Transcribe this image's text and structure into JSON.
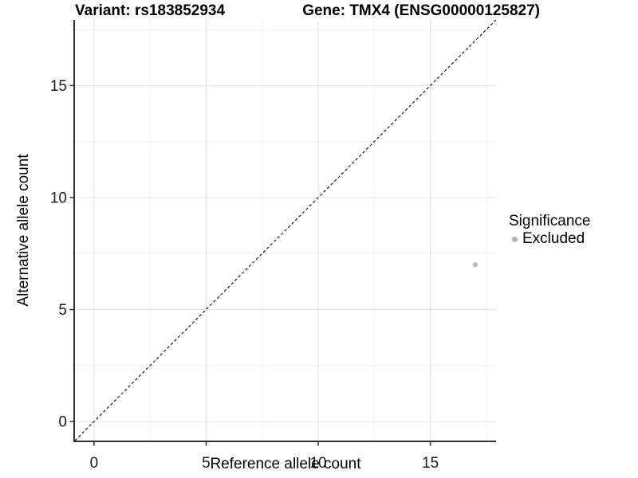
{
  "chart_data": {
    "type": "scatter",
    "titles": {
      "left": "Variant: rs183852934",
      "right": "Gene: TMX4 (ENSG00000125827)"
    },
    "xlabel": "Reference allele count",
    "ylabel": "Alternative allele count",
    "xlim": [
      -0.85,
      17.93
    ],
    "ylim": [
      -0.85,
      17.93
    ],
    "x_ticks": [
      0,
      5,
      10,
      15
    ],
    "y_ticks": [
      0,
      5,
      10,
      15
    ],
    "x_minor_ticks": [
      2.5,
      7.5,
      12.5,
      17.5
    ],
    "y_minor_ticks": [
      2.5,
      7.5,
      12.5,
      17.5
    ],
    "grid": "major+minor",
    "reference_line": {
      "type": "identity",
      "style": "dashed",
      "from": [
        -0.85,
        -0.85
      ],
      "to": [
        17.93,
        17.93
      ]
    },
    "series": [
      {
        "name": "Excluded",
        "marker": "circle",
        "color": "#bcbcbc",
        "points": [
          {
            "x": 17,
            "y": 7
          }
        ]
      }
    ],
    "legend": {
      "title": "Significance",
      "position": "right",
      "items": [
        {
          "label": "Excluded",
          "marker_color": "#b3b3b3"
        }
      ]
    }
  },
  "colors": {
    "background": "#ffffff",
    "axis_line": "#333333",
    "tick_mark": "#333333",
    "tick_label": "#1a1a1a",
    "grid_major": "#e4e4e4",
    "grid_minor": "#efefef",
    "identity_line": "#111111"
  }
}
